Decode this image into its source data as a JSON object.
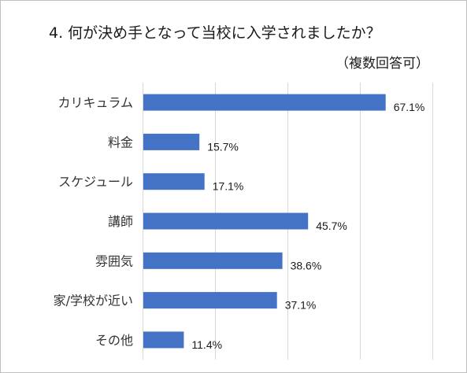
{
  "chart_data": {
    "type": "bar",
    "orientation": "horizontal",
    "title": "4. 何が決め手となって当校に入学されましたか？",
    "subtitle": "（複数回答可）",
    "categories": [
      "カリキュラム",
      "料金",
      "スケジュール",
      "講師",
      "雰囲気",
      "家/学校が近い",
      "その他"
    ],
    "values": [
      67.1,
      15.7,
      17.1,
      45.7,
      38.6,
      37.1,
      11.4
    ],
    "value_labels": [
      "67.1%",
      "15.7%",
      "17.1%",
      "45.7%",
      "38.6%",
      "37.1%",
      "11.4%"
    ],
    "xlim": [
      0,
      80
    ],
    "gridlines": true,
    "legend": false,
    "bar_color": "#4472c4",
    "grid_color": "#d9d9d9"
  }
}
